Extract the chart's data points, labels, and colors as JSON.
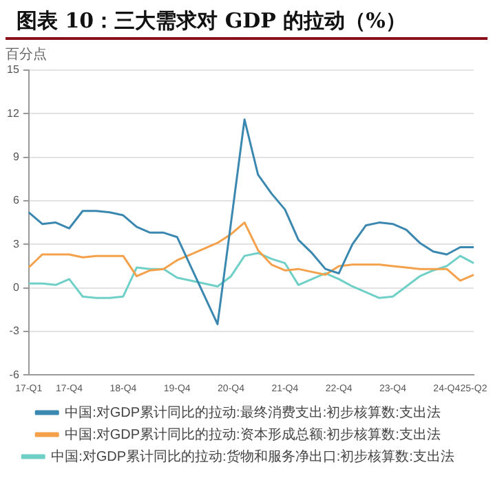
{
  "chart_data": {
    "type": "line",
    "title": "图表 10：三大需求对 GDP 的拉动（%）",
    "ylabel": "百分点",
    "categories": [
      "17-Q1",
      null,
      null,
      "17-Q4",
      null,
      null,
      null,
      "18-Q4",
      null,
      null,
      null,
      "19-Q4",
      null,
      null,
      null,
      "20-Q4",
      null,
      null,
      null,
      "21-Q4",
      null,
      null,
      null,
      "22-Q4",
      null,
      null,
      null,
      "23-Q4",
      null,
      null,
      null,
      "24-Q4",
      null,
      "25-Q2"
    ],
    "series": [
      {
        "name": "中国:对GDP累计同比的拉动:最终消费支出:初步核算数:支出法",
        "color": "#3a87b0",
        "values": [
          5.2,
          4.4,
          4.5,
          4.1,
          5.3,
          5.3,
          5.2,
          5.0,
          4.2,
          3.8,
          3.8,
          3.5,
          1.5,
          -0.5,
          -2.5,
          4.5,
          11.6,
          7.8,
          6.5,
          5.4,
          3.3,
          2.4,
          1.3,
          1.0,
          3.0,
          4.3,
          4.5,
          4.4,
          4.0,
          3.1,
          2.5,
          2.3,
          2.8,
          2.8
        ]
      },
      {
        "name": "中国:对GDP累计同比的拉动:资本形成总额:初步核算数:支出法",
        "color": "#f5a04a",
        "values": [
          1.4,
          2.3,
          2.3,
          2.3,
          2.1,
          2.2,
          2.2,
          2.2,
          0.8,
          1.2,
          1.3,
          1.9,
          2.3,
          2.7,
          3.1,
          3.7,
          4.5,
          2.6,
          1.6,
          1.2,
          1.3,
          1.1,
          0.9,
          1.5,
          1.6,
          1.6,
          1.6,
          1.5,
          1.4,
          1.3,
          1.3,
          1.3,
          0.5,
          0.9
        ]
      },
      {
        "name": "中国:对GDP累计同比的拉动:货物和服务净出口:初步核算数:支出法",
        "color": "#6fd0c8",
        "values": [
          0.3,
          0.3,
          0.2,
          0.6,
          -0.6,
          -0.7,
          -0.7,
          -0.6,
          1.4,
          1.3,
          1.3,
          0.7,
          0.5,
          0.3,
          0.1,
          0.8,
          2.2,
          2.4,
          2.0,
          1.7,
          0.2,
          0.6,
          1.0,
          0.6,
          0.1,
          -0.3,
          -0.7,
          -0.6,
          0.1,
          0.8,
          1.2,
          1.5,
          2.2,
          1.7
        ]
      }
    ],
    "ylim": [
      -6,
      15
    ],
    "yticks": [
      -6,
      -3,
      0,
      3,
      6,
      9,
      12,
      15
    ],
    "grid": "y",
    "legend": "bottom",
    "marker": "none",
    "line_style": "solid"
  }
}
